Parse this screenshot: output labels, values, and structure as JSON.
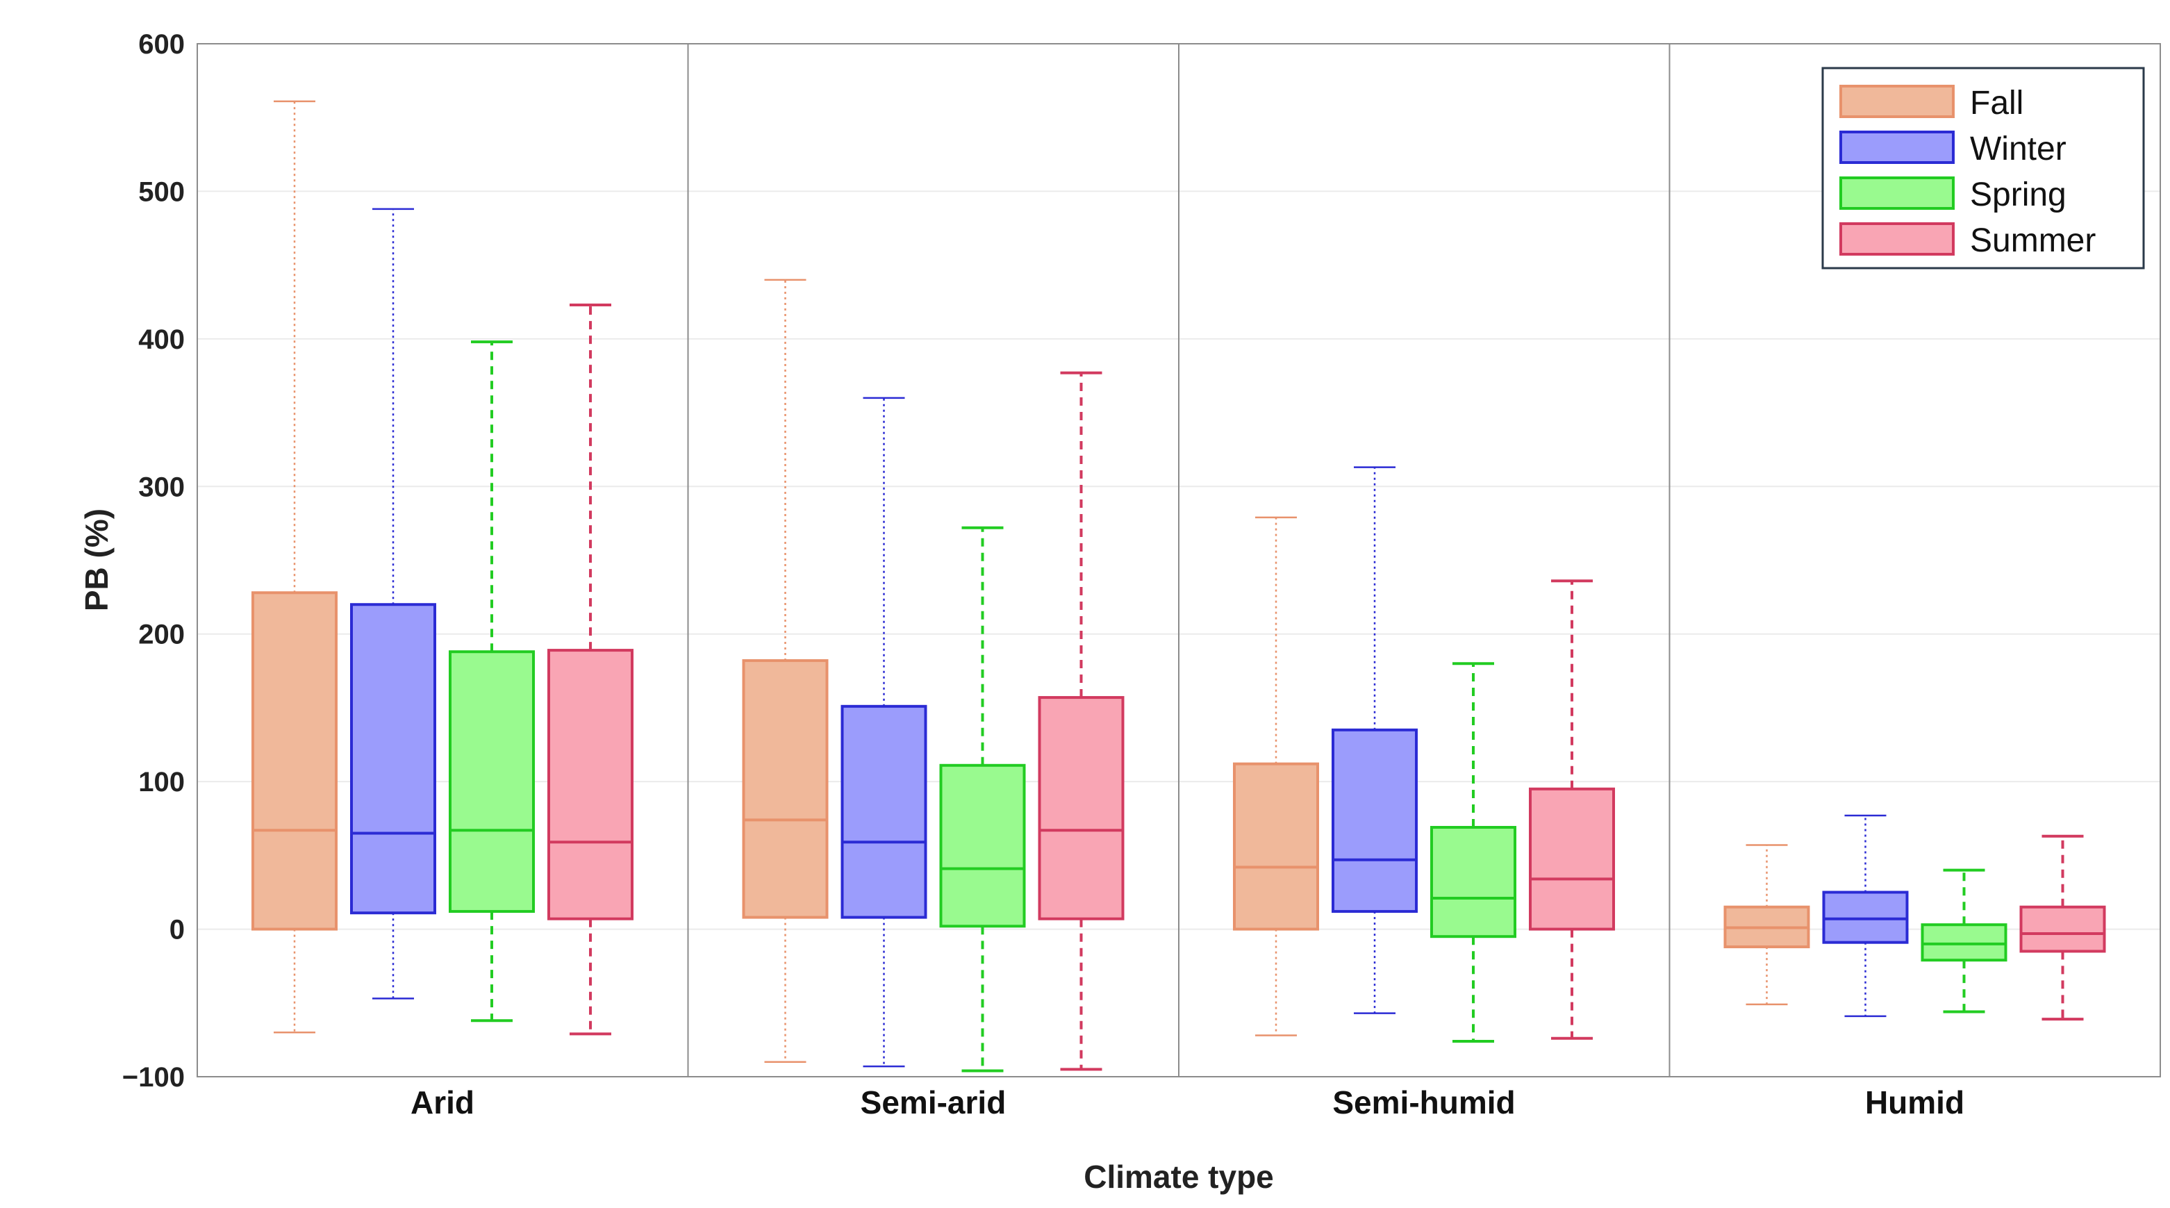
{
  "chart_data": {
    "type": "boxplot",
    "xlabel": "Climate type",
    "ylabel": "PB (%)",
    "ylim": [
      -100,
      600
    ],
    "yticks": [
      -100,
      0,
      100,
      200,
      300,
      400,
      500,
      600
    ],
    "ytick_labels": [
      "−100",
      "0",
      "100",
      "200",
      "300",
      "400",
      "500",
      "600"
    ],
    "grid": true,
    "legend_position": "top-right",
    "categories": [
      "Arid",
      "Semi-arid",
      "Semi-humid",
      "Humid"
    ],
    "series": [
      {
        "name": "Fall",
        "fill": "#f0b89a",
        "stroke": "#e8926c",
        "whisker_style": "dotted",
        "boxes": [
          {
            "whisker_low": -70,
            "q1": 0,
            "median": 67,
            "q3": 228,
            "whisker_high": 561
          },
          {
            "whisker_low": -90,
            "q1": 8,
            "median": 74,
            "q3": 182,
            "whisker_high": 440
          },
          {
            "whisker_low": -72,
            "q1": 0,
            "median": 42,
            "q3": 112,
            "whisker_high": 279
          },
          {
            "whisker_low": -51,
            "q1": -12,
            "median": 1,
            "q3": 15,
            "whisker_high": 57
          }
        ]
      },
      {
        "name": "Winter",
        "fill": "#9b9cfc",
        "stroke": "#2b2bd4",
        "whisker_style": "dotted",
        "boxes": [
          {
            "whisker_low": -47,
            "q1": 11,
            "median": 65,
            "q3": 220,
            "whisker_high": 488
          },
          {
            "whisker_low": -93,
            "q1": 8,
            "median": 59,
            "q3": 151,
            "whisker_high": 360
          },
          {
            "whisker_low": -57,
            "q1": 12,
            "median": 47,
            "q3": 135,
            "whisker_high": 313
          },
          {
            "whisker_low": -59,
            "q1": -9,
            "median": 7,
            "q3": 25,
            "whisker_high": 77
          }
        ]
      },
      {
        "name": "Spring",
        "fill": "#99fa8f",
        "stroke": "#22cc22",
        "whisker_style": "dashed",
        "boxes": [
          {
            "whisker_low": -62,
            "q1": 12,
            "median": 67,
            "q3": 188,
            "whisker_high": 398
          },
          {
            "whisker_low": -96,
            "q1": 2,
            "median": 41,
            "q3": 111,
            "whisker_high": 272
          },
          {
            "whisker_low": -76,
            "q1": -5,
            "median": 21,
            "q3": 69,
            "whisker_high": 180
          },
          {
            "whisker_low": -56,
            "q1": -21,
            "median": -10,
            "q3": 3,
            "whisker_high": 40
          }
        ]
      },
      {
        "name": "Summer",
        "fill": "#f9a5b4",
        "stroke": "#d23a5f",
        "whisker_style": "dashed",
        "boxes": [
          {
            "whisker_low": -71,
            "q1": 7,
            "median": 59,
            "q3": 189,
            "whisker_high": 423
          },
          {
            "whisker_low": -95,
            "q1": 7,
            "median": 67,
            "q3": 157,
            "whisker_high": 377
          },
          {
            "whisker_low": -74,
            "q1": 0,
            "median": 34,
            "q3": 95,
            "whisker_high": 236
          },
          {
            "whisker_low": -61,
            "q1": -15,
            "median": -3,
            "q3": 15,
            "whisker_high": 63
          }
        ]
      }
    ]
  }
}
